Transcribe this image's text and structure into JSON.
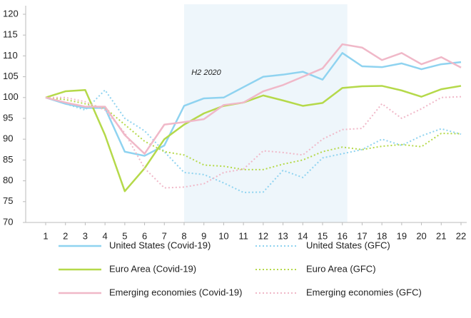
{
  "chart_data": {
    "type": "line",
    "x": [
      1,
      2,
      3,
      4,
      5,
      6,
      7,
      8,
      9,
      10,
      11,
      12,
      13,
      14,
      15,
      16,
      17,
      18,
      19,
      20,
      21,
      22
    ],
    "xlim": [
      1,
      22
    ],
    "xticks": [
      1,
      2,
      3,
      4,
      5,
      6,
      7,
      8,
      9,
      10,
      11,
      12,
      13,
      14,
      15,
      16,
      17,
      18,
      19,
      20,
      21,
      22
    ],
    "ylim": [
      70,
      120
    ],
    "yticks": [
      70,
      75,
      80,
      85,
      90,
      95,
      100,
      105,
      110,
      115,
      120
    ],
    "grid": false,
    "shade": [
      8,
      16
    ],
    "shade_color": "#eef6fb",
    "annotation": "H2 2020",
    "legend": "bottom",
    "series": [
      {
        "name": "United States (Covid-19)",
        "color": "#8fd3f0",
        "dash": false,
        "values": [
          100,
          98.5,
          97.5,
          97.5,
          87,
          86,
          88.5,
          98,
          99.8,
          100,
          102.5,
          105,
          105.5,
          106.2,
          104.3,
          110.7,
          107.5,
          107.3,
          108.2,
          106.8,
          108,
          108.5
        ]
      },
      {
        "name": "United States (GFC)",
        "color": "#8fd3f0",
        "dash": true,
        "values": [
          100,
          98.5,
          97,
          101.8,
          95,
          92,
          87,
          82,
          81.5,
          79.5,
          77.2,
          77.3,
          82.5,
          80.8,
          85.5,
          86.5,
          87.5,
          90,
          88.5,
          90.8,
          92.5,
          91.2
        ]
      },
      {
        "name": "Euro Area (Covid-19)",
        "color": "#b5d94a",
        "dash": false,
        "values": [
          100,
          101.5,
          101.8,
          91,
          77.5,
          83,
          90,
          93.5,
          96.2,
          98,
          98.8,
          100.5,
          99.3,
          98,
          98.7,
          102.3,
          102.7,
          102.8,
          101.7,
          100.2,
          102,
          102.8
        ]
      },
      {
        "name": "Euro Area (GFC)",
        "color": "#b5d94a",
        "dash": true,
        "values": [
          100,
          99.5,
          98.5,
          97.5,
          93.5,
          89.5,
          87,
          86.2,
          83.8,
          83.5,
          82.7,
          82.7,
          84,
          85,
          87,
          88.1,
          87.5,
          88.3,
          88.7,
          88.2,
          91.4,
          91.3
        ]
      },
      {
        "name": "Emerging economies (Covid-19)",
        "color": "#f0b8c8",
        "dash": false,
        "values": [
          100,
          98.8,
          97.8,
          97.8,
          91,
          86.5,
          93.5,
          94.1,
          94.8,
          98.2,
          98.8,
          101.5,
          103,
          105,
          107,
          112.8,
          112,
          109,
          110.7,
          108,
          109.7,
          107.2
        ]
      },
      {
        "name": "Emerging economies (GFC)",
        "color": "#f0b8c8",
        "dash": true,
        "values": [
          100,
          100,
          99,
          97,
          91.5,
          83,
          78.3,
          78.5,
          79.3,
          82,
          82.8,
          87.2,
          86.8,
          86.2,
          90,
          92.3,
          92.6,
          98.5,
          95,
          97.3,
          100,
          100.2
        ]
      }
    ]
  }
}
